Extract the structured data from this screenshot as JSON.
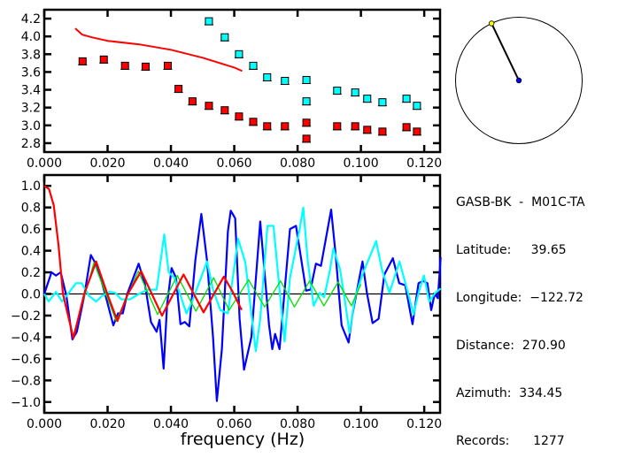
{
  "chart_data": [
    {
      "type": "scatter",
      "xlim": [
        0,
        0.125
      ],
      "ylim": [
        2.7,
        4.3
      ],
      "xticks": [
        0,
        0.02,
        0.04,
        0.06,
        0.08,
        0.1,
        0.12
      ],
      "xtick_labels": [
        "0.000",
        "0.020",
        "0.040",
        "0.060",
        "0.080",
        "0.100",
        "0.120"
      ],
      "yticks": [
        2.8,
        3.0,
        3.2,
        3.4,
        3.6,
        3.8,
        4.0,
        4.2
      ],
      "ytick_labels": [
        "2.8",
        "3.0",
        "3.2",
        "3.4",
        "3.6",
        "3.8",
        "4.0",
        "4.2"
      ],
      "grid": false,
      "series": [
        {
          "kind": "markers",
          "color": "#ff0000",
          "x": [
            0.0121,
            0.0188,
            0.0255,
            0.032,
            0.039,
            0.0424,
            0.0468,
            0.052,
            0.057,
            0.0615,
            0.066,
            0.0704,
            0.076,
            0.0828,
            0.0828,
            0.0925,
            0.0982,
            0.102,
            0.1068,
            0.1144,
            0.1177
          ],
          "y": [
            3.72,
            3.74,
            3.67,
            3.66,
            3.67,
            3.41,
            3.27,
            3.22,
            3.17,
            3.1,
            3.04,
            2.99,
            2.99,
            3.03,
            2.85,
            2.99,
            2.99,
            2.95,
            2.93,
            2.98,
            2.93
          ]
        },
        {
          "kind": "markers",
          "color": "#00ffff",
          "x": [
            0.052,
            0.057,
            0.0615,
            0.066,
            0.0704,
            0.076,
            0.0828,
            0.0828,
            0.0925,
            0.0982,
            0.102,
            0.1068,
            0.1144,
            0.1177
          ],
          "y": [
            4.17,
            3.99,
            3.8,
            3.67,
            3.54,
            3.5,
            3.51,
            3.27,
            3.39,
            3.37,
            3.3,
            3.26,
            3.3,
            3.22
          ]
        },
        {
          "kind": "line",
          "color": "#ff0000",
          "x": [
            0.0098,
            0.012,
            0.015,
            0.02,
            0.03,
            0.04,
            0.05,
            0.06,
            0.0625
          ],
          "y": [
            4.09,
            4.02,
            3.99,
            3.95,
            3.91,
            3.85,
            3.76,
            3.65,
            3.61
          ]
        }
      ]
    },
    {
      "type": "line",
      "xlabel": "frequency (Hz)",
      "xlim": [
        0,
        0.125
      ],
      "ylim": [
        -1.1,
        1.1
      ],
      "xticks": [
        0,
        0.02,
        0.04,
        0.06,
        0.08,
        0.1,
        0.12
      ],
      "xtick_labels": [
        "0.000",
        "0.020",
        "0.040",
        "0.060",
        "0.080",
        "0.100",
        "0.120"
      ],
      "yticks": [
        -1.0,
        -0.8,
        -0.6,
        -0.4,
        -0.2,
        0.0,
        0.2,
        0.4,
        0.6,
        0.8,
        1.0
      ],
      "ytick_labels": [
        "−1.0",
        "−0.8",
        "−0.6",
        "−0.4",
        "−0.2",
        "0.0",
        "0.2",
        "0.4",
        "0.6",
        "0.8",
        "1.0"
      ],
      "zero_line": true,
      "grid": false,
      "series": [
        {
          "color": "#0000ff",
          "width": 2.2,
          "x": [
            0,
            0.0023,
            0.0037,
            0.0052,
            0.007,
            0.0089,
            0.0103,
            0.0126,
            0.0147,
            0.0168,
            0.0192,
            0.0218,
            0.0233,
            0.0248,
            0.0262,
            0.0298,
            0.0318,
            0.0337,
            0.0355,
            0.0364,
            0.0377,
            0.0388,
            0.0402,
            0.0416,
            0.043,
            0.0444,
            0.0458,
            0.0477,
            0.0496,
            0.0514,
            0.0533,
            0.0545,
            0.0561,
            0.058,
            0.0589,
            0.0603,
            0.0617,
            0.0631,
            0.0654,
            0.0682,
            0.071,
            0.072,
            0.0729,
            0.0743,
            0.0776,
            0.0795,
            0.0827,
            0.0841,
            0.0858,
            0.0874,
            0.0906,
            0.092,
            0.0939,
            0.0961,
            0.0972,
            0.1005,
            0.1019,
            0.1037,
            0.1056,
            0.1074,
            0.1101,
            0.1121,
            0.114,
            0.1163,
            0.1182,
            0.1196,
            0.121,
            0.1222,
            0.1233,
            0.1243,
            0.1252
          ],
          "y": [
            0.0,
            0.2,
            0.17,
            0.2,
            -0.02,
            -0.42,
            -0.35,
            -0.02,
            0.36,
            0.25,
            0.0,
            -0.29,
            -0.18,
            -0.18,
            0.0,
            0.28,
            0.09,
            -0.26,
            -0.35,
            -0.24,
            -0.69,
            -0.1,
            0.24,
            0.15,
            -0.28,
            -0.26,
            -0.3,
            0.31,
            0.74,
            0.31,
            -0.4,
            -0.99,
            -0.51,
            0.58,
            0.77,
            0.7,
            -0.23,
            -0.7,
            -0.4,
            0.67,
            -0.29,
            -0.51,
            -0.37,
            -0.51,
            0.6,
            0.63,
            0.03,
            0.04,
            0.28,
            0.26,
            0.78,
            0.37,
            -0.29,
            -0.45,
            -0.21,
            0.3,
            0.01,
            -0.27,
            -0.23,
            0.18,
            0.33,
            0.1,
            0.08,
            -0.28,
            0.1,
            0.12,
            0.1,
            -0.15,
            0.0,
            -0.04,
            0.34
          ]
        },
        {
          "color": "#00ffff",
          "width": 2.2,
          "x": [
            0,
            0.0014,
            0.0037,
            0.0056,
            0.0075,
            0.01,
            0.0118,
            0.0142,
            0.0164,
            0.0182,
            0.0206,
            0.0224,
            0.0243,
            0.0271,
            0.0299,
            0.0327,
            0.0355,
            0.0379,
            0.0393,
            0.0411,
            0.0449,
            0.0467,
            0.0514,
            0.0533,
            0.0556,
            0.058,
            0.0612,
            0.0635,
            0.0668,
            0.0682,
            0.0705,
            0.0724,
            0.0743,
            0.0759,
            0.0776,
            0.0806,
            0.0818,
            0.0832,
            0.0851,
            0.087,
            0.0884,
            0.0903,
            0.0913,
            0.0934,
            0.095,
            0.0964,
            0.0981,
            0.1005,
            0.1048,
            0.1066,
            0.109,
            0.1122,
            0.1146,
            0.1166,
            0.1184,
            0.1199,
            0.1216,
            0.1235,
            0.1252
          ],
          "y": [
            0.0,
            -0.07,
            0.02,
            -0.07,
            0.0,
            0.1,
            0.1,
            -0.02,
            -0.07,
            -0.02,
            0.02,
            0.01,
            -0.05,
            -0.05,
            0.0,
            0.04,
            0.04,
            0.55,
            0.2,
            0.15,
            -0.18,
            -0.07,
            0.3,
            0.04,
            -0.15,
            -0.18,
            0.51,
            0.29,
            -0.53,
            -0.23,
            0.63,
            0.63,
            0.04,
            -0.44,
            0.15,
            0.59,
            0.8,
            0.31,
            -0.11,
            0.01,
            -0.03,
            0.23,
            0.42,
            0.23,
            -0.07,
            -0.36,
            -0.04,
            0.18,
            0.49,
            0.23,
            0.01,
            0.3,
            0.04,
            -0.19,
            0.03,
            0.17,
            -0.07,
            0.01,
            0.05
          ]
        },
        {
          "color": "#00e000",
          "width": 1.3,
          "x": [
            0.0092,
            0.0157,
            0.0227,
            0.0297,
            0.0358,
            0.042,
            0.0479,
            0.0535,
            0.0584,
            0.0645,
            0.0696,
            0.0746,
            0.079,
            0.0838,
            0.0883,
            0.0928,
            0.097,
            0.1
          ],
          "y": [
            -0.38,
            0.29,
            -0.25,
            0.21,
            -0.19,
            0.17,
            -0.16,
            0.15,
            -0.15,
            0.13,
            -0.12,
            0.12,
            -0.12,
            0.12,
            -0.11,
            0.11,
            -0.11,
            0.09
          ]
        },
        {
          "color": "#ff0000",
          "width": 2.2,
          "x": [
            0,
            0.0015,
            0.003,
            0.0045,
            0.0059,
            0.0092,
            0.0126,
            0.0164,
            0.0199,
            0.0231,
            0.0264,
            0.0306,
            0.0372,
            0.044,
            0.0503,
            0.0567,
            0.0595,
            0.0622,
            0.0625
          ],
          "y": [
            1.0,
            0.97,
            0.82,
            0.45,
            0.0,
            -0.41,
            0.0,
            0.3,
            0.0,
            -0.25,
            0.0,
            0.21,
            -0.2,
            0.18,
            -0.17,
            0.16,
            0.02,
            -0.14,
            -0.14
          ]
        }
      ]
    }
  ],
  "map": {
    "center_color": "#0000ff",
    "station_color": "#ffff00",
    "azimuth_deg": 334.45
  },
  "info": {
    "pair": "GASB-BK  -  M01C-TA",
    "latitude": "Latitude:     39.65",
    "longitude": "Longitude:  −122.72",
    "distance": "Distance:  270.90",
    "azimuth": "Azimuth:  334.45",
    "records": "Records:      1277"
  }
}
